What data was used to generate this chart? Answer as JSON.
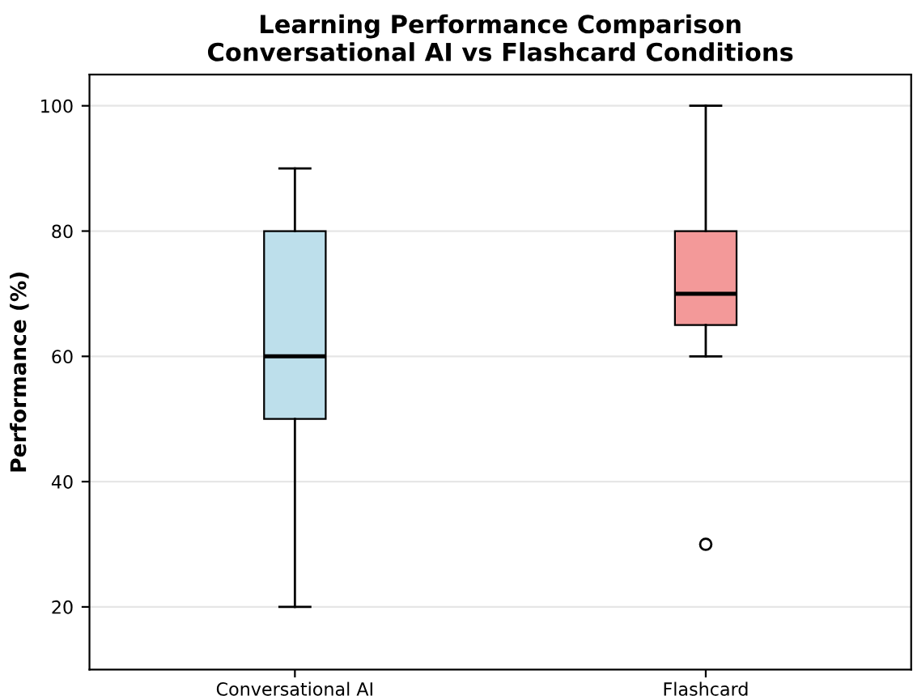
{
  "chart_data": {
    "type": "box",
    "title": "Learning Performance Comparison\nConversational AI vs Flashcard Conditions",
    "ylabel": "Performance (%)",
    "categories": [
      "Conversational AI",
      "Flashcard"
    ],
    "colors": [
      "#bddfeb",
      "#f39999"
    ],
    "boxes": [
      {
        "low": 20,
        "q1": 50,
        "median": 60,
        "q3": 80,
        "high": 90
      },
      {
        "low": 60,
        "q1": 65,
        "median": 70,
        "q3": 80,
        "high": 100,
        "outliers": [
          30
        ]
      }
    ],
    "ylim": [
      10,
      105
    ],
    "yticks": [
      20,
      40,
      60,
      80,
      100
    ],
    "grid": "y"
  }
}
